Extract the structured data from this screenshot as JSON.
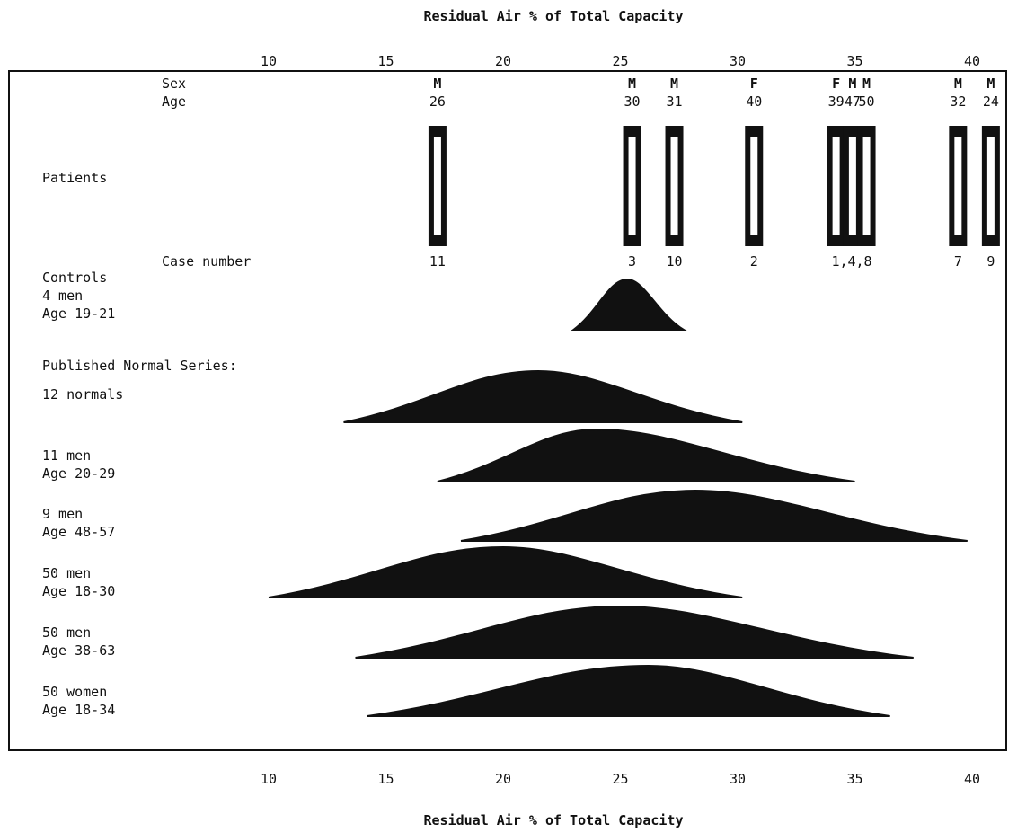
{
  "chart_data": {
    "type": "other",
    "axis": {
      "label_top": "Residual Air % of Total Capacity",
      "label_bottom": "Residual Air % of Total Capacity",
      "ticks": [
        10,
        15,
        20,
        25,
        30,
        35,
        40
      ],
      "tick_labels_top": [
        "10",
        "15",
        "20",
        "25",
        "30",
        "35",
        "40"
      ],
      "tick_labels_bottom": [
        "10",
        "15",
        "20",
        "25",
        "30",
        "35",
        "40"
      ],
      "xlim": [
        10,
        40
      ]
    },
    "row_labels": {
      "sex": "Sex",
      "age": "Age",
      "patients": "Patients",
      "case_number": "Case number",
      "controls": [
        "Controls",
        "4 men",
        "Age 19-21"
      ],
      "published": "Published Normal Series:"
    },
    "patients": [
      {
        "case": "11",
        "sex": "M",
        "age": "26",
        "residual_air_pct": 17.2
      },
      {
        "case": "3",
        "sex": "M",
        "age": "30",
        "residual_air_pct": 25.5
      },
      {
        "case": "10",
        "sex": "M",
        "age": "31",
        "residual_air_pct": 27.3
      },
      {
        "case": "2",
        "sex": "F",
        "age": "40",
        "residual_air_pct": 30.7
      },
      {
        "case": "1",
        "sex": "F",
        "age": "39",
        "residual_air_pct": 34.2
      },
      {
        "case": "4",
        "sex": "M",
        "age": "47",
        "residual_air_pct": 34.9
      },
      {
        "case": "8",
        "sex": "M",
        "age": "50",
        "residual_air_pct": 35.5
      },
      {
        "case": "7",
        "sex": "M",
        "age": "32",
        "residual_air_pct": 39.4
      },
      {
        "case": "9",
        "sex": "M",
        "age": "24",
        "residual_air_pct": 40.8
      }
    ],
    "patient_case_labels": [
      "11",
      "3",
      "10",
      "2",
      "1,4,8",
      "7",
      "9"
    ],
    "series": [
      {
        "name": "Controls",
        "labels": [
          "Controls",
          "4 men",
          "Age 19-21"
        ],
        "min": 23.0,
        "peak": 25.3,
        "max": 27.7
      },
      {
        "name": "12 normals",
        "labels": [
          "12 normals"
        ],
        "min": 13.2,
        "peak": 21.5,
        "max": 30.2
      },
      {
        "name": "11 men Age 20-29",
        "labels": [
          "11 men",
          "Age 20-29"
        ],
        "min": 17.2,
        "peak": 24.0,
        "max": 35.0
      },
      {
        "name": "9 men Age 48-57",
        "labels": [
          "9 men",
          "Age 48-57"
        ],
        "min": 18.2,
        "peak": 28.2,
        "max": 39.8
      },
      {
        "name": "50 men Age 18-30",
        "labels": [
          "50 men",
          "Age 18-30"
        ],
        "min": 10.0,
        "peak": 20.0,
        "max": 30.2
      },
      {
        "name": "50 men Age 38-63",
        "labels": [
          "50 men",
          "Age 38-63"
        ],
        "min": 13.7,
        "peak": 25.0,
        "max": 37.5
      },
      {
        "name": "50 women Age 18-34",
        "labels": [
          "50 women",
          "Age 18-34"
        ],
        "min": 14.2,
        "peak": 26.2,
        "max": 36.5
      }
    ]
  },
  "colors": {
    "ink": "#111111",
    "paper": "#ffffff"
  }
}
